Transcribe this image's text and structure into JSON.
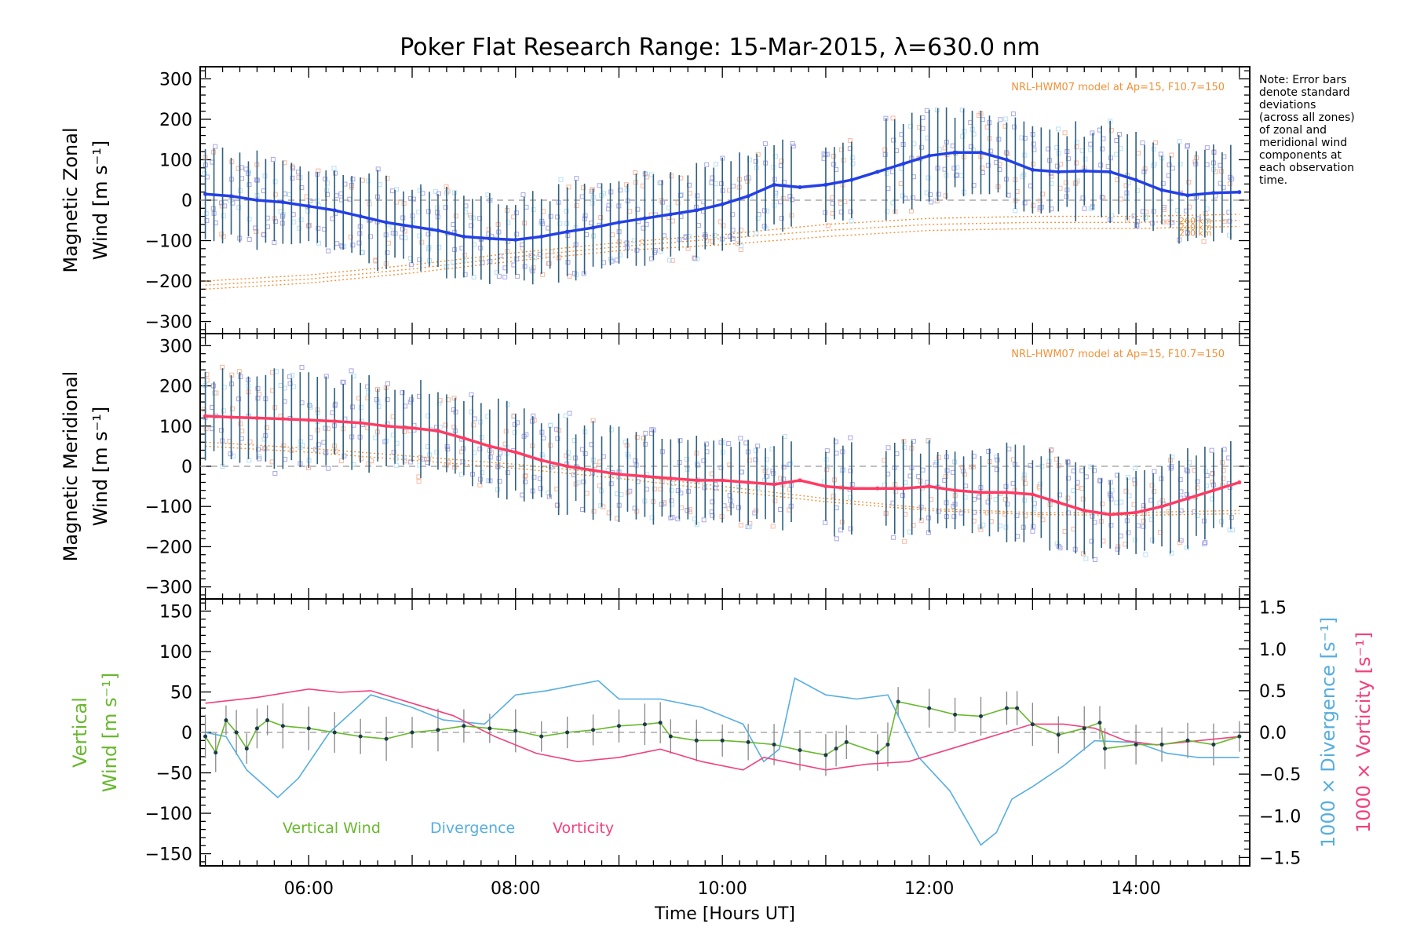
{
  "title": "Poker Flat Research Range: 15-Mar-2015, λ=630.0 nm",
  "note_lines": [
    "Note: Error bars",
    "denote standard",
    "deviations",
    "(across all zones)",
    "of zonal and",
    "meridional wind",
    "components at",
    "each observation",
    "time."
  ],
  "colors": {
    "zonal": "#2340e6",
    "meridional": "#ff3b63",
    "vertical": "#68b82e",
    "divergence": "#56aee0",
    "vorticity": "#f0427e",
    "model": "#f0923a",
    "errorbar": "#2f5f7d",
    "scatter": "#a8a8e8",
    "zero_line": "#999999"
  },
  "chart_data": [
    {
      "type": "line",
      "panel": "zonal",
      "ylabel_line1": "Magnetic Zonal",
      "ylabel_line2": "Wind [m s⁻¹]",
      "xlim": [
        4.95,
        15.1
      ],
      "ylim": [
        -330,
        330
      ],
      "yticks": [
        300,
        200,
        100,
        0,
        -100,
        -200,
        -300
      ],
      "ytick_labels": [
        "300",
        "200",
        "100",
        "0",
        "−100",
        "−200",
        "−300"
      ],
      "model_label": "NRL-HWM07 model at Ap=15, F10.7=150",
      "model_altitudes": [
        "260 km",
        "240 km",
        "220 km"
      ],
      "model_curves": [
        {
          "x": [
            5.0,
            6.0,
            7.0,
            8.0,
            9.0,
            10.0,
            11.0,
            12.0,
            13.0,
            14.0,
            15.0
          ],
          "y": [
            -200,
            -185,
            -160,
            -130,
            -105,
            -85,
            -60,
            -45,
            -40,
            -40,
            -35
          ]
        },
        {
          "x": [
            5.0,
            6.0,
            7.0,
            8.0,
            9.0,
            10.0,
            11.0,
            12.0,
            13.0,
            14.0,
            15.0
          ],
          "y": [
            -210,
            -195,
            -170,
            -140,
            -115,
            -95,
            -75,
            -60,
            -55,
            -55,
            -50
          ]
        },
        {
          "x": [
            5.0,
            6.0,
            7.0,
            8.0,
            9.0,
            10.0,
            11.0,
            12.0,
            13.0,
            14.0,
            15.0
          ],
          "y": [
            -220,
            -205,
            -180,
            -150,
            -125,
            -110,
            -90,
            -75,
            -70,
            -70,
            -65
          ]
        }
      ],
      "series": [
        {
          "x": [
            5.0,
            5.25,
            5.5,
            5.75,
            6.0,
            6.25,
            6.5,
            6.75,
            7.0,
            7.25,
            7.5,
            7.75,
            8.0,
            8.25,
            8.5,
            8.75,
            9.0,
            9.25,
            9.5,
            9.75,
            10.0,
            10.25,
            10.5,
            10.75,
            11.0,
            11.25,
            11.5,
            11.75,
            12.0,
            12.25,
            12.5,
            12.75,
            13.0,
            13.25,
            13.5,
            13.75,
            14.0,
            14.25,
            14.5,
            14.75,
            15.0
          ],
          "y": [
            15,
            10,
            0,
            -5,
            -15,
            -25,
            -40,
            -55,
            -65,
            -75,
            -90,
            -95,
            -98,
            -90,
            -78,
            -68,
            -55,
            -45,
            -35,
            -25,
            -10,
            10,
            38,
            32,
            38,
            50,
            70,
            90,
            110,
            118,
            118,
            100,
            75,
            70,
            72,
            70,
            50,
            25,
            12,
            18,
            20
          ]
        }
      ],
      "errorbar_sd": 110
    },
    {
      "type": "line",
      "panel": "meridional",
      "ylabel_line1": "Magnetic Meridional",
      "ylabel_line2": "Wind [m s⁻¹]",
      "xlim": [
        4.95,
        15.1
      ],
      "ylim": [
        -330,
        330
      ],
      "yticks": [
        300,
        200,
        100,
        0,
        -100,
        -200,
        -300
      ],
      "ytick_labels": [
        "300",
        "200",
        "100",
        "0",
        "−100",
        "−200",
        "−300"
      ],
      "model_label": "NRL-HWM07 model at Ap=15, F10.7=150",
      "model_curves": [
        {
          "x": [
            5.0,
            6.0,
            7.0,
            8.0,
            9.0,
            10.0,
            11.0,
            12.0,
            13.0,
            14.0,
            15.0
          ],
          "y": [
            60,
            45,
            25,
            5,
            -20,
            -50,
            -80,
            -105,
            -115,
            -115,
            -110
          ]
        },
        {
          "x": [
            5.0,
            6.0,
            7.0,
            8.0,
            9.0,
            10.0,
            11.0,
            12.0,
            13.0,
            14.0,
            15.0
          ],
          "y": [
            50,
            35,
            15,
            -5,
            -30,
            -60,
            -88,
            -110,
            -120,
            -122,
            -118
          ]
        }
      ],
      "series": [
        {
          "x": [
            5.0,
            5.25,
            5.5,
            5.75,
            6.0,
            6.25,
            6.5,
            6.75,
            7.0,
            7.25,
            7.5,
            7.75,
            8.0,
            8.25,
            8.5,
            8.75,
            9.0,
            9.25,
            9.5,
            9.75,
            10.0,
            10.25,
            10.5,
            10.75,
            11.0,
            11.25,
            11.5,
            11.75,
            12.0,
            12.25,
            12.5,
            12.75,
            13.0,
            13.25,
            13.5,
            13.75,
            14.0,
            14.25,
            14.5,
            14.75,
            15.0
          ],
          "y": [
            125,
            122,
            120,
            118,
            115,
            112,
            108,
            100,
            95,
            88,
            70,
            50,
            35,
            15,
            0,
            -10,
            -20,
            -25,
            -30,
            -35,
            -35,
            -40,
            -45,
            -35,
            -50,
            -55,
            -55,
            -55,
            -50,
            -60,
            -65,
            -65,
            -70,
            -90,
            -110,
            -120,
            -115,
            -100,
            -80,
            -60,
            -40
          ]
        }
      ],
      "errorbar_sd": 110
    },
    {
      "type": "line",
      "panel": "vertical",
      "ylabel_line1": "Vertical",
      "ylabel_line2": "Wind [m s⁻¹]",
      "y2label_div": "1000 × Divergence [s⁻¹]",
      "y2label_vor": "1000 × Vorticity [s⁻¹]",
      "xlabel": "Time [Hours UT]",
      "xlim": [
        4.95,
        15.1
      ],
      "ylim": [
        -165,
        165
      ],
      "yticks": [
        150,
        100,
        50,
        0,
        -50,
        -100,
        -150
      ],
      "ytick_labels": [
        "150",
        "100",
        "50",
        "0",
        "−50",
        "−100",
        "−150"
      ],
      "y2lim": [
        -1.6,
        1.6
      ],
      "y2ticks": [
        1.5,
        1.0,
        0.5,
        0.0,
        -0.5,
        -1.0,
        -1.5
      ],
      "y2tick_labels": [
        "1.5",
        "1.0",
        "0.5",
        "0.0",
        "−0.5",
        "−1.0",
        "−1.5"
      ],
      "xticks": [
        6,
        8,
        10,
        12,
        14
      ],
      "xtick_labels": [
        "06:00",
        "08:00",
        "10:00",
        "12:00",
        "14:00"
      ],
      "legend": [
        "Vertical Wind",
        "Divergence",
        "Vorticity"
      ],
      "series": [
        {
          "name": "Vertical Wind",
          "x": [
            5.0,
            5.1,
            5.2,
            5.3,
            5.4,
            5.5,
            5.6,
            5.75,
            6.0,
            6.25,
            6.5,
            6.75,
            7.0,
            7.25,
            7.5,
            7.75,
            8.0,
            8.25,
            8.5,
            8.75,
            9.0,
            9.25,
            9.4,
            9.5,
            9.75,
            10.0,
            10.25,
            10.5,
            10.75,
            11.0,
            11.1,
            11.2,
            11.5,
            11.6,
            11.7,
            12.0,
            12.25,
            12.5,
            12.75,
            12.85,
            13.0,
            13.25,
            13.5,
            13.65,
            13.7,
            14.0,
            14.25,
            14.5,
            14.75,
            15.0
          ],
          "y": [
            -5,
            -25,
            15,
            0,
            -20,
            5,
            15,
            8,
            5,
            0,
            -5,
            -8,
            0,
            3,
            8,
            5,
            2,
            -5,
            0,
            3,
            8,
            10,
            12,
            -5,
            -10,
            -10,
            -12,
            -15,
            -22,
            -28,
            -20,
            -12,
            -25,
            -15,
            38,
            30,
            22,
            20,
            30,
            30,
            10,
            -3,
            5,
            12,
            -20,
            -15,
            -15,
            -10,
            -15,
            -5
          ]
        },
        {
          "name": "Divergence",
          "x": [
            5.0,
            5.2,
            5.4,
            5.7,
            5.9,
            6.2,
            6.6,
            7.0,
            7.3,
            7.7,
            8.0,
            8.3,
            8.8,
            9.0,
            9.4,
            9.8,
            10.2,
            10.4,
            10.55,
            10.7,
            11.0,
            11.3,
            11.6,
            11.9,
            12.2,
            12.5,
            12.65,
            12.8,
            13.0,
            13.3,
            13.6,
            14.0,
            14.3,
            14.6,
            15.0
          ],
          "y": [
            0.0,
            -0.05,
            -0.45,
            -0.78,
            -0.55,
            0.0,
            0.45,
            0.3,
            0.15,
            0.1,
            0.45,
            0.5,
            0.62,
            0.4,
            0.4,
            0.3,
            0.1,
            -0.35,
            -0.2,
            0.65,
            0.45,
            0.4,
            0.45,
            -0.3,
            -0.7,
            -1.35,
            -1.2,
            -0.8,
            -0.65,
            -0.4,
            -0.1,
            -0.12,
            -0.25,
            -0.3,
            -0.3
          ]
        },
        {
          "name": "Vorticity",
          "x": [
            5.0,
            5.5,
            6.0,
            6.3,
            6.6,
            7.0,
            7.4,
            7.8,
            8.2,
            8.6,
            9.0,
            9.4,
            9.8,
            10.2,
            10.4,
            10.6,
            11.0,
            11.4,
            11.8,
            12.2,
            12.6,
            13.0,
            13.3,
            13.6,
            13.9,
            14.2,
            14.6,
            15.0
          ],
          "y": [
            0.35,
            0.42,
            0.52,
            0.48,
            0.5,
            0.35,
            0.2,
            -0.05,
            -0.25,
            -0.35,
            -0.3,
            -0.2,
            -0.35,
            -0.45,
            -0.3,
            -0.35,
            -0.45,
            -0.38,
            -0.35,
            -0.2,
            -0.05,
            0.1,
            0.1,
            0.05,
            -0.1,
            -0.15,
            -0.1,
            -0.05
          ]
        }
      ]
    }
  ]
}
